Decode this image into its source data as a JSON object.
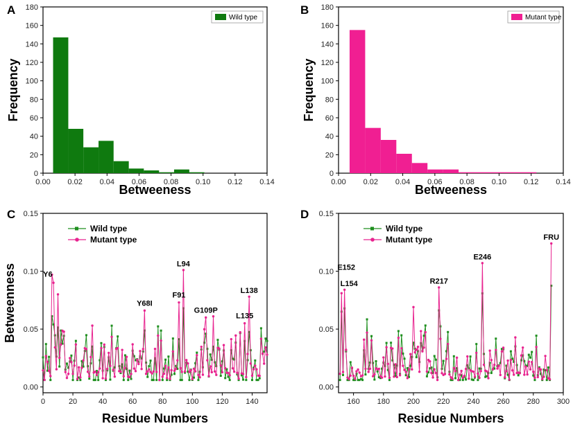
{
  "colors": {
    "wild": "#0f7a0f",
    "mutant": "#f01f92",
    "wild_line": "#1f8f1f",
    "mutant_line": "#e8238f"
  },
  "chart_data": [
    {
      "panel": "A",
      "type": "bar",
      "title": "",
      "xlabel": "Betweeness",
      "ylabel": "Frequency",
      "xlim": [
        0,
        0.14
      ],
      "ylim": [
        0,
        180
      ],
      "xticks": [
        "0.00",
        "0.02",
        "0.04",
        "0.06",
        "0.08",
        "0.10",
        "0.12",
        "0.14"
      ],
      "yticks": [
        "0",
        "20",
        "40",
        "60",
        "80",
        "100",
        "120",
        "140",
        "160",
        "180"
      ],
      "legend": "Wild type",
      "bin_edges": [
        0.0063,
        0.0158,
        0.0252,
        0.0347,
        0.0441,
        0.0536,
        0.063,
        0.0725,
        0.0819,
        0.0914,
        0.1008
      ],
      "values": [
        147,
        48,
        28,
        35,
        13,
        5,
        3,
        1,
        4,
        1
      ]
    },
    {
      "panel": "B",
      "type": "bar",
      "title": "",
      "xlabel": "Betweeness",
      "ylabel": "Frequency",
      "xlim": [
        0,
        0.14
      ],
      "ylim": [
        0,
        180
      ],
      "xticks": [
        "0.00",
        "0.02",
        "0.04",
        "0.06",
        "0.08",
        "0.10",
        "0.12",
        "0.14"
      ],
      "yticks": [
        "0",
        "20",
        "40",
        "60",
        "80",
        "100",
        "120",
        "140",
        "160",
        "180"
      ],
      "legend": "Mutant type",
      "bin_edges": [
        0.0069,
        0.0166,
        0.0263,
        0.036,
        0.0457,
        0.0554,
        0.0651,
        0.0748,
        0.0845,
        0.0942,
        0.1039,
        0.1136,
        0.1233
      ],
      "values": [
        155,
        49,
        36,
        21,
        11,
        4,
        4,
        1,
        1,
        1,
        1,
        1
      ]
    },
    {
      "panel": "C",
      "type": "line",
      "xlabel": "Residue Numbers",
      "ylabel": "Betweenness",
      "xlim": [
        0,
        150
      ],
      "ylim": [
        -0.005,
        0.15
      ],
      "xticks": [
        "0",
        "20",
        "40",
        "60",
        "80",
        "100",
        "120",
        "140"
      ],
      "yticks": [
        "0.00",
        "0.05",
        "0.10",
        "0.15"
      ],
      "series_names": [
        "Wild type",
        "Mutant type"
      ],
      "annotations": [
        {
          "text": "Y6",
          "x": 6,
          "y": 0.094
        },
        {
          "text": "Y68I",
          "x": 68,
          "y": 0.069
        },
        {
          "text": "F91",
          "x": 91,
          "y": 0.076
        },
        {
          "text": "L94",
          "x": 94,
          "y": 0.103
        },
        {
          "text": "G109P",
          "x": 109,
          "y": 0.063
        },
        {
          "text": "L135",
          "x": 135,
          "y": 0.058
        },
        {
          "text": "L138",
          "x": 138,
          "y": 0.08
        }
      ],
      "peaks": [
        [
          6,
          0.097
        ],
        [
          7,
          0.09
        ],
        [
          10,
          0.08
        ],
        [
          33,
          0.053
        ],
        [
          68,
          0.066
        ],
        [
          91,
          0.073
        ],
        [
          94,
          0.101
        ],
        [
          109,
          0.06
        ],
        [
          114,
          0.061
        ],
        [
          135,
          0.055
        ],
        [
          138,
          0.078
        ]
      ]
    },
    {
      "panel": "D",
      "type": "line",
      "xlabel": "Residue Numbers",
      "ylabel": "",
      "xlim": [
        150,
        300
      ],
      "ylim": [
        -0.005,
        0.15
      ],
      "xticks": [
        "160",
        "180",
        "200",
        "220",
        "240",
        "260",
        "280",
        "300"
      ],
      "yticks": [
        "0.00",
        "0.05",
        "0.10",
        "0.15"
      ],
      "series_names": [
        "Wild type",
        "Mutant type"
      ],
      "annotations": [
        {
          "text": "E152",
          "x": 152,
          "y": 0.1
        },
        {
          "text": "L154",
          "x": 154,
          "y": 0.086
        },
        {
          "text": "R217",
          "x": 217,
          "y": 0.088
        },
        {
          "text": "E246",
          "x": 246,
          "y": 0.109
        },
        {
          "text": "FRU",
          "x": 292,
          "y": 0.126
        }
      ],
      "peaks": [
        [
          152,
          0.081
        ],
        [
          154,
          0.084
        ],
        [
          200,
          0.069
        ],
        [
          217,
          0.086
        ],
        [
          246,
          0.107
        ],
        [
          292,
          0.124
        ]
      ]
    }
  ]
}
